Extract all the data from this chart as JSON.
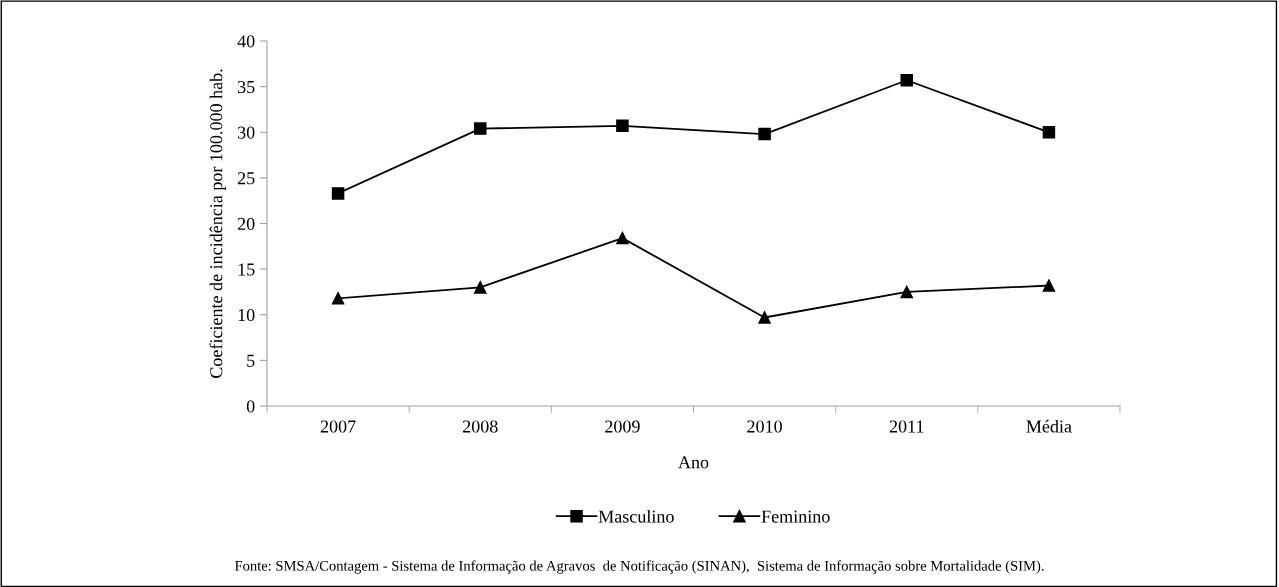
{
  "chart_data": {
    "type": "line",
    "categories": [
      "2007",
      "2008",
      "2009",
      "2010",
      "2011",
      "Média"
    ],
    "series": [
      {
        "name": "Masculino",
        "color": "#000000",
        "marker": "square",
        "values": [
          23.3,
          30.4,
          30.7,
          29.8,
          35.7,
          30.0
        ]
      },
      {
        "name": "Feminino",
        "color": "#000000",
        "marker": "triangle",
        "values": [
          11.8,
          13.0,
          18.4,
          9.7,
          12.5,
          13.2
        ]
      }
    ],
    "xlabel": "Ano",
    "ylabel": "Coeficiente de incidência por 100.000 hab.",
    "ylim": [
      0,
      40
    ],
    "yticks": [
      0,
      5,
      10,
      15,
      20,
      25,
      30,
      35,
      40
    ],
    "legend": "bottom",
    "grid": false,
    "line_style": "solid",
    "annotations": [
      "Fonte: SMSA/Contagem - Sistema de Informação de Agravos  de Notificação (SINAN),  Sistema de Informação sobre Mortalidade (SIM)."
    ]
  }
}
